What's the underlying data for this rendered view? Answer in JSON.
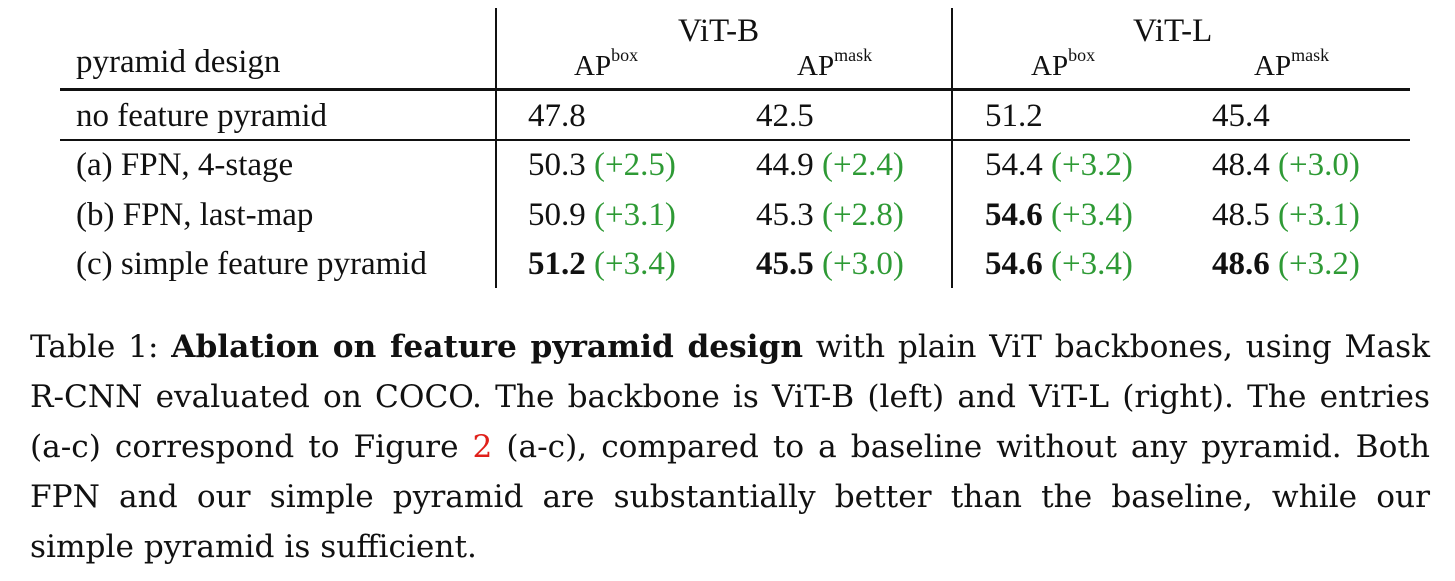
{
  "table": {
    "header": {
      "row_label": "pyramid design",
      "groups": [
        "ViT-B",
        "ViT-L"
      ],
      "metric_base": "AP",
      "metric_sups": [
        "box",
        "mask",
        "box",
        "mask"
      ]
    },
    "rows": [
      {
        "label": "no feature pyramid",
        "cells": [
          {
            "v": "47.8",
            "g": "",
            "b": false
          },
          {
            "v": "42.5",
            "g": "",
            "b": false
          },
          {
            "v": "51.2",
            "g": "",
            "b": false
          },
          {
            "v": "45.4",
            "g": "",
            "b": false
          }
        ]
      },
      {
        "label": "(a) FPN, 4-stage",
        "cells": [
          {
            "v": "50.3",
            "g": "(+2.5)",
            "b": false
          },
          {
            "v": "44.9",
            "g": "(+2.4)",
            "b": false
          },
          {
            "v": "54.4",
            "g": "(+3.2)",
            "b": false
          },
          {
            "v": "48.4",
            "g": "(+3.0)",
            "b": false
          }
        ]
      },
      {
        "label": "(b) FPN, last-map",
        "cells": [
          {
            "v": "50.9",
            "g": "(+3.1)",
            "b": false
          },
          {
            "v": "45.3",
            "g": "(+2.8)",
            "b": false
          },
          {
            "v": "54.6",
            "g": "(+3.4)",
            "b": true
          },
          {
            "v": "48.5",
            "g": "(+3.1)",
            "b": false
          }
        ]
      },
      {
        "label": "(c) simple feature pyramid",
        "cells": [
          {
            "v": "51.2",
            "g": "(+3.4)",
            "b": true
          },
          {
            "v": "45.5",
            "g": "(+3.0)",
            "b": true
          },
          {
            "v": "54.6",
            "g": "(+3.4)",
            "b": true
          },
          {
            "v": "48.6",
            "g": "(+3.2)",
            "b": true
          }
        ]
      }
    ]
  },
  "caption": {
    "label": "Table 1:",
    "bold": "Ablation on feature pyramid design",
    "part1": " with plain ViT backbones, using Mask R-CNN evaluated on COCO. The backbone is ViT-B (left) and ViT-L (right). The entries (a-c) correspond to Figure ",
    "ref": "2",
    "part2": " (a-c), compared to a baseline without any pyramid. Both FPN and our simple pyramid are substantially better than the baseline, while our simple pyramid is sufficient."
  },
  "colors": {
    "gain": "#2e9a35",
    "ref": "#e0201a"
  }
}
